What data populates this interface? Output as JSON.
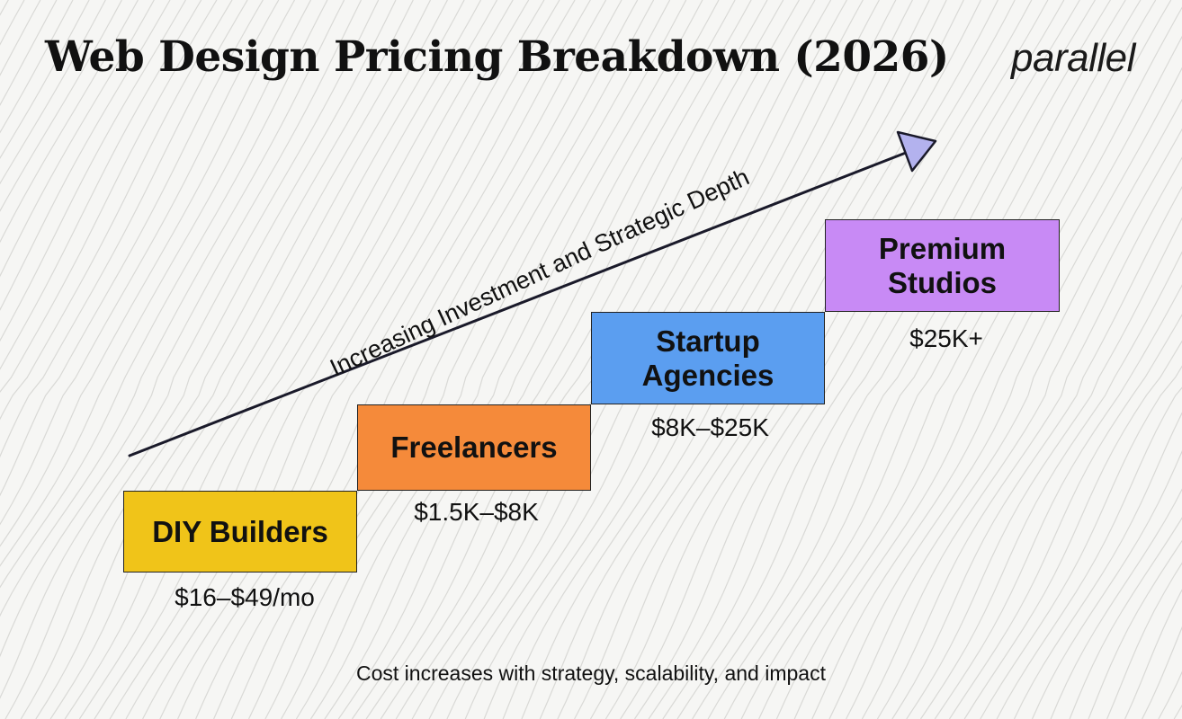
{
  "title": "Web Design Pricing Breakdown (2026)",
  "logo_text": "parallel",
  "arrow_label": "Increasing Investment and Strategic Depth",
  "steps": [
    {
      "label": "DIY Builders",
      "price": "$16–$49/mo",
      "color": "#f0c419"
    },
    {
      "label": "Freelancers",
      "price": "$1.5K–$8K",
      "color": "#f58a3a"
    },
    {
      "label": "Startup Agencies",
      "price": "$8K–$25K",
      "color": "#5b9ef0"
    },
    {
      "label": "Premium Studios",
      "price": "$25K+",
      "color": "#c88af5"
    }
  ],
  "caption": "Cost increases with strategy, scalability, and impact",
  "colors": {
    "background": "#f6f6f4",
    "pattern_line": "#d9d9d6",
    "arrow_head": "#b3b2ee",
    "text": "#111111"
  }
}
